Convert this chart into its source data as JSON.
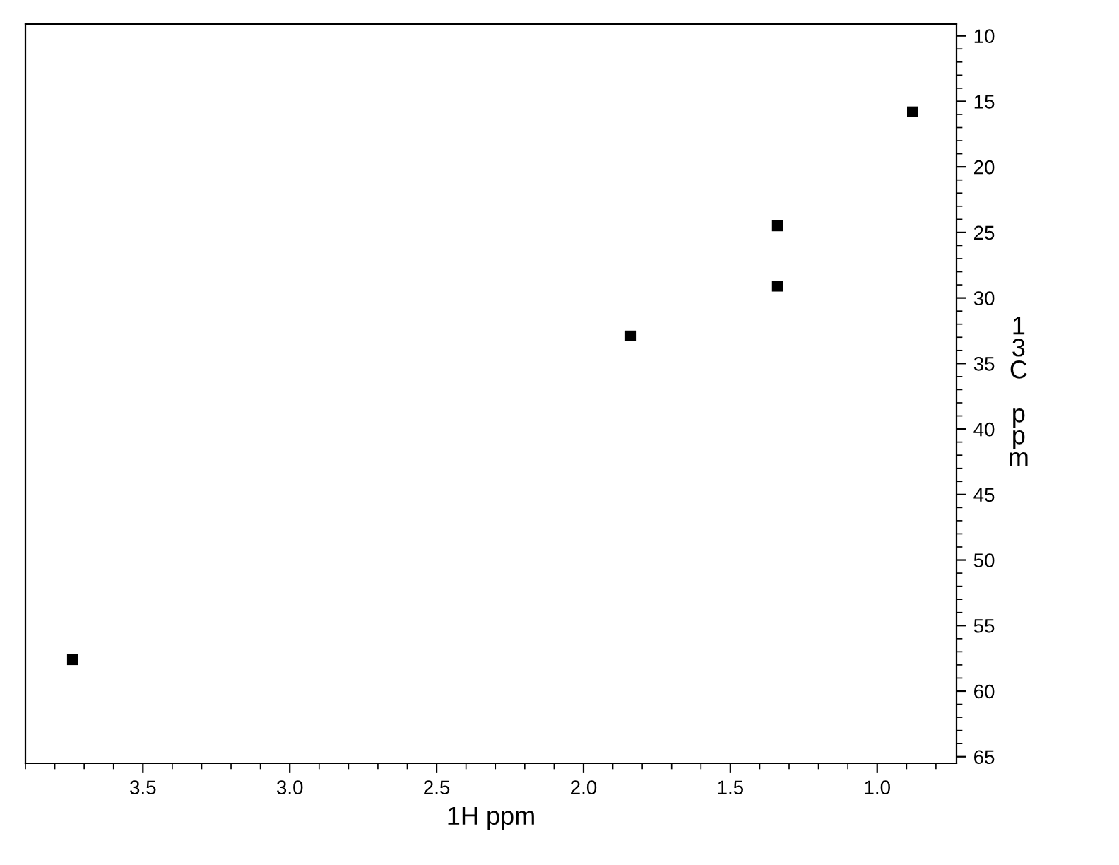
{
  "chart_data": {
    "type": "scatter",
    "xlabel": "1H ppm",
    "ylabel": "13C ppm",
    "x": [
      3.74,
      1.84,
      1.34,
      1.34,
      0.88
    ],
    "series": [
      {
        "color": "#000000",
        "values": [
          57.6,
          32.9,
          24.5,
          29.1,
          15.8
        ]
      }
    ],
    "marker": "square",
    "xlim": [
      3.9,
      0.73
    ],
    "xticks": [
      3.5,
      {
        "value": 3,
        "label": "3.0"
      },
      2.5,
      {
        "value": 2,
        "label": "2.0"
      },
      1.5,
      {
        "value": 1,
        "label": "1.0"
      }
    ],
    "ylim": [
      65.5,
      9.1
    ],
    "yticks": [
      10,
      15,
      20,
      25,
      30,
      35,
      40,
      45,
      50,
      55,
      60,
      65
    ],
    "grid": false,
    "legend": false
  }
}
